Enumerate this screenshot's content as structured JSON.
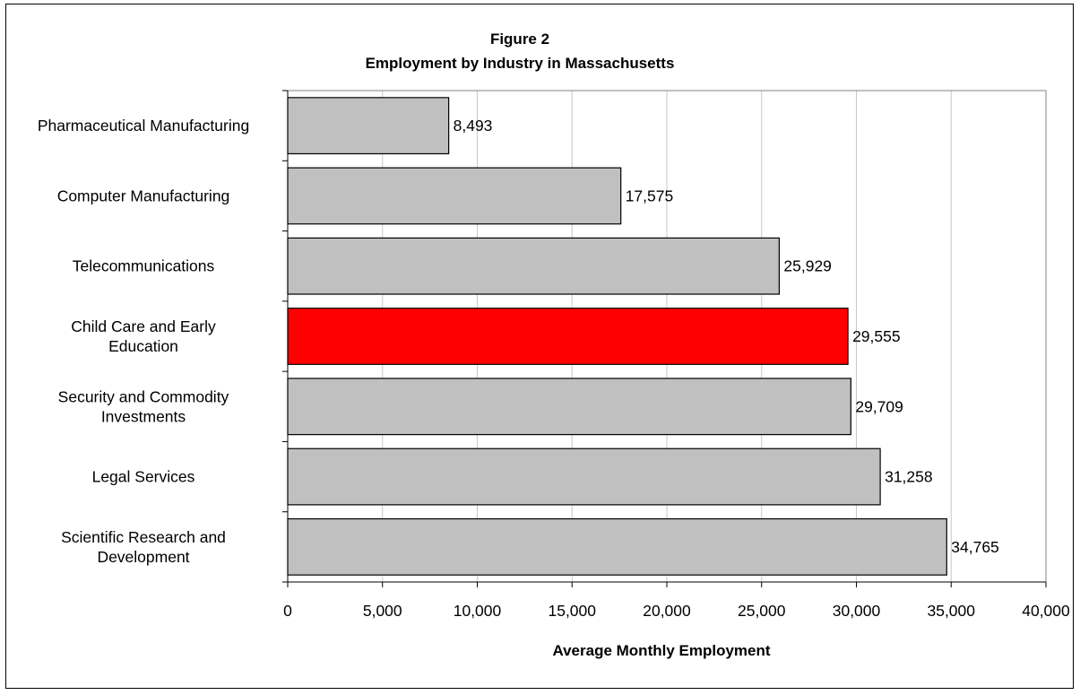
{
  "chart_data": {
    "type": "bar",
    "orientation": "horizontal",
    "title": "Figure 2",
    "subtitle": "Employment by Industry in Massachusetts",
    "xlabel": "Average Monthly Employment",
    "ylabel": "",
    "xlim": [
      0,
      40000
    ],
    "xticks": [
      "0",
      "5,000",
      "10,000",
      "15,000",
      "20,000",
      "25,000",
      "30,000",
      "35,000",
      "40,000"
    ],
    "grid": "vertical",
    "legend": "none",
    "categories": [
      [
        "Pharmaceutical Manufacturing"
      ],
      [
        "Computer Manufacturing"
      ],
      [
        "Telecommunications"
      ],
      [
        "Child Care and Early",
        "Education"
      ],
      [
        "Security and Commodity",
        "Investments"
      ],
      [
        "Legal Services"
      ],
      [
        "Scientific Research and",
        "Development"
      ]
    ],
    "values": [
      8493,
      17575,
      25929,
      29555,
      29709,
      31258,
      34765
    ],
    "value_labels": [
      "8,493",
      "17,575",
      "25,929",
      "29,555",
      "29,709",
      "31,258",
      "34,765"
    ],
    "colors": [
      "#c0c0c0",
      "#c0c0c0",
      "#c0c0c0",
      "#ff0000",
      "#c0c0c0",
      "#c0c0c0",
      "#c0c0c0"
    ],
    "highlight": "Child Care and Early Education"
  }
}
